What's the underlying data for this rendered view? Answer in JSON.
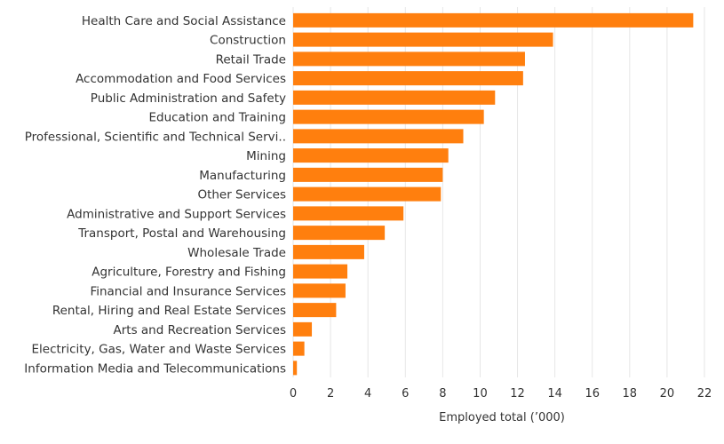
{
  "chart_data": {
    "type": "bar",
    "orientation": "horizontal",
    "categories": [
      "Health Care and Social Assistance",
      "Construction",
      "Retail Trade",
      "Accommodation and Food Services",
      "Public Administration and Safety",
      "Education and Training",
      "Professional, Scientific and Technical Servi..",
      "Mining",
      "Manufacturing",
      "Other Services",
      "Administrative and Support Services",
      "Transport, Postal and Warehousing",
      "Wholesale Trade",
      "Agriculture, Forestry and Fishing",
      "Financial and Insurance Services",
      "Rental, Hiring and Real Estate Services",
      "Arts and Recreation Services",
      "Electricity, Gas, Water and Waste Services",
      "Information Media and Telecommunications"
    ],
    "values": [
      21.4,
      13.9,
      12.4,
      12.3,
      10.8,
      10.2,
      9.1,
      8.3,
      8.0,
      7.9,
      5.9,
      4.9,
      3.8,
      2.9,
      2.8,
      2.3,
      1.0,
      0.6,
      0.2
    ],
    "title": "",
    "xlabel": "Employed total (’000)",
    "ylabel": "",
    "xlim": [
      0,
      22
    ],
    "xticks": [
      "0",
      "2",
      "4",
      "6",
      "8",
      "10",
      "12",
      "14",
      "16",
      "18",
      "20",
      "22"
    ],
    "grid": "vertical",
    "bar_color": "#FF7F0E"
  }
}
